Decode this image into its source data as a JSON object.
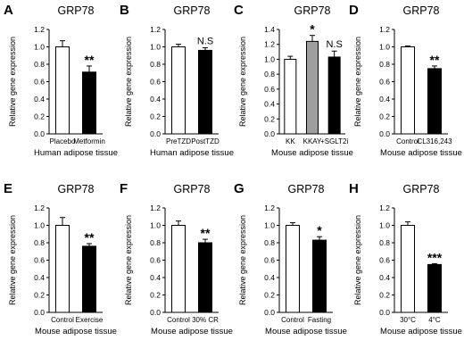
{
  "chart_data": [
    {
      "type": "bar",
      "panel": "A",
      "title": "GRP78",
      "ylabel": "Relative gene expression",
      "xlabel": "Human adipose tissue",
      "ylim": [
        0,
        1.2
      ],
      "yticks": [
        "0.0",
        "0.2",
        "0.4",
        "0.6",
        "0.8",
        "1.0",
        "1.2"
      ],
      "categories": [
        "Placebo",
        "Metformin"
      ],
      "values": [
        1.0,
        0.71
      ],
      "errors": [
        0.07,
        0.07
      ],
      "bar_colors": [
        "#ffffff",
        "#000000"
      ],
      "annotations": [
        "",
        "**"
      ]
    },
    {
      "type": "bar",
      "panel": "B",
      "title": "GRP78",
      "ylabel": "Relative gene expression",
      "xlabel": "Human adipose tissue",
      "ylim": [
        0,
        1.2
      ],
      "yticks": [
        "0.0",
        "0.2",
        "0.4",
        "0.6",
        "0.8",
        "1.0",
        "1.2"
      ],
      "categories": [
        "PreTZD",
        "PostTZD"
      ],
      "values": [
        1.0,
        0.96
      ],
      "errors": [
        0.03,
        0.03
      ],
      "bar_colors": [
        "#ffffff",
        "#000000"
      ],
      "annotations": [
        "",
        "N.S"
      ]
    },
    {
      "type": "bar",
      "panel": "C",
      "title": "GRP78",
      "ylabel": "Relative gene expression",
      "xlabel": "Mouse adipose tissue",
      "ylim": [
        0,
        1.4
      ],
      "yticks": [
        "0.0",
        "0.2",
        "0.4",
        "0.6",
        "0.8",
        "1.0",
        "1.2",
        "1.4"
      ],
      "categories": [
        "KK",
        "KKAY",
        "+SGLT2i"
      ],
      "values": [
        1.0,
        1.24,
        1.03
      ],
      "errors": [
        0.04,
        0.08,
        0.08
      ],
      "bar_colors": [
        "#ffffff",
        "#9e9e9e",
        "#000000"
      ],
      "annotations": [
        "",
        "*",
        "N.S"
      ]
    },
    {
      "type": "bar",
      "panel": "D",
      "title": "GRP78",
      "ylabel": "Relative gene expression",
      "xlabel": "Mouse adipose tissue",
      "ylim": [
        0,
        1.2
      ],
      "yticks": [
        "0.0",
        "0.2",
        "0.4",
        "0.6",
        "0.8",
        "1.0",
        "1.2"
      ],
      "categories": [
        "Control",
        "CL316,243"
      ],
      "values": [
        1.0,
        0.75
      ],
      "errors": [
        0.01,
        0.03
      ],
      "bar_colors": [
        "#ffffff",
        "#000000"
      ],
      "annotations": [
        "",
        "**"
      ]
    },
    {
      "type": "bar",
      "panel": "E",
      "title": "GRP78",
      "ylabel": "Relative gene expression",
      "xlabel": "Mouse adipose tissue",
      "ylim": [
        0,
        1.2
      ],
      "yticks": [
        "0.0",
        "0.2",
        "0.4",
        "0.6",
        "0.8",
        "1.0",
        "1.2"
      ],
      "categories": [
        "Control",
        "Exercise"
      ],
      "values": [
        1.0,
        0.76
      ],
      "errors": [
        0.09,
        0.03
      ],
      "bar_colors": [
        "#ffffff",
        "#000000"
      ],
      "annotations": [
        "",
        "**"
      ]
    },
    {
      "type": "bar",
      "panel": "F",
      "title": "GRP78",
      "ylabel": "Relative gene expression",
      "xlabel": "Mouse adipose tissue",
      "ylim": [
        0,
        1.2
      ],
      "yticks": [
        "0.0",
        "0.2",
        "0.4",
        "0.6",
        "0.8",
        "1.0",
        "1.2"
      ],
      "categories": [
        "Control",
        "30% CR"
      ],
      "values": [
        1.0,
        0.8
      ],
      "errors": [
        0.05,
        0.04
      ],
      "bar_colors": [
        "#ffffff",
        "#000000"
      ],
      "annotations": [
        "",
        "**"
      ]
    },
    {
      "type": "bar",
      "panel": "G",
      "title": "GRP78",
      "ylabel": "Relative gene expression",
      "xlabel": "Mouse adipose tissue",
      "ylim": [
        0,
        1.2
      ],
      "yticks": [
        "0.0",
        "0.2",
        "0.4",
        "0.6",
        "0.8",
        "1.0",
        "1.2"
      ],
      "categories": [
        "Control",
        "Fasting"
      ],
      "values": [
        1.0,
        0.83
      ],
      "errors": [
        0.03,
        0.04
      ],
      "bar_colors": [
        "#ffffff",
        "#000000"
      ],
      "annotations": [
        "",
        "*"
      ]
    },
    {
      "type": "bar",
      "panel": "H",
      "title": "GRP78",
      "ylabel": "Relative gene expression",
      "xlabel": "Mouse adipose tissue",
      "ylim": [
        0,
        1.2
      ],
      "yticks": [
        "0.0",
        "0.2",
        "0.4",
        "0.6",
        "0.8",
        "1.0",
        "1.2"
      ],
      "categories": [
        "30°C",
        "4°C"
      ],
      "values": [
        1.0,
        0.55
      ],
      "errors": [
        0.04,
        0.01
      ],
      "bar_colors": [
        "#ffffff",
        "#000000"
      ],
      "annotations": [
        "",
        "***"
      ]
    }
  ]
}
